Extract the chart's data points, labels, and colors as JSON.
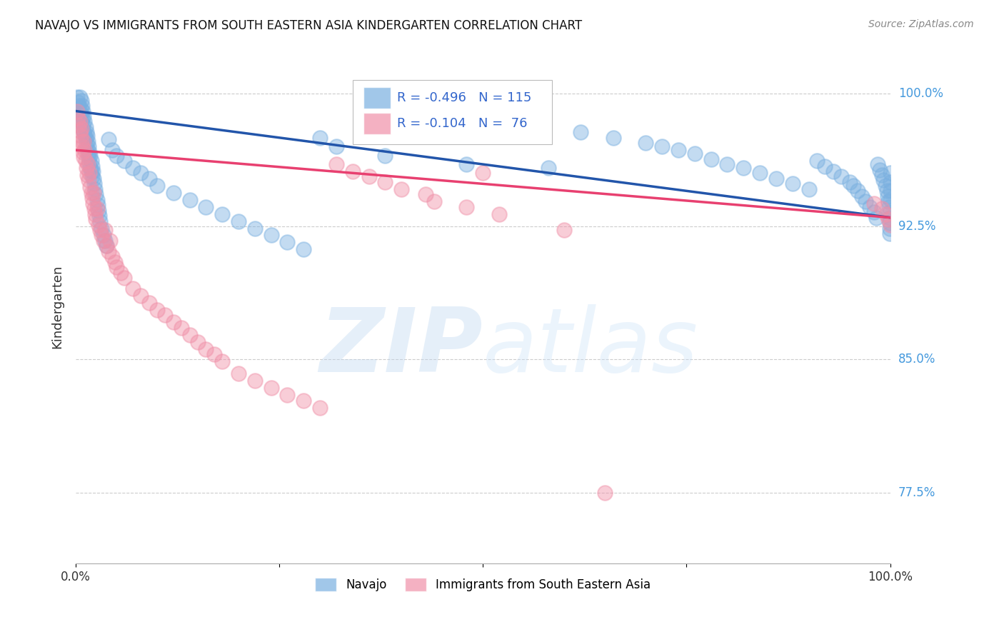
{
  "title": "NAVAJO VS IMMIGRANTS FROM SOUTH EASTERN ASIA KINDERGARTEN CORRELATION CHART",
  "source": "Source: ZipAtlas.com",
  "ylabel": "Kindergarten",
  "ymin": 0.735,
  "ymax": 1.025,
  "xmin": 0.0,
  "xmax": 1.0,
  "legend_R_navajo": "R = -0.496",
  "legend_N_navajo": "N = 115",
  "legend_R_asia": "R = -0.104",
  "legend_N_asia": "N =  76",
  "navajo_color": "#7AB0E0",
  "asia_color": "#F090A8",
  "trendline_navajo_color": "#2255AA",
  "trendline_asia_color": "#E84070",
  "background_color": "#FFFFFF",
  "grid_color": "#CCCCCC",
  "right_labels": {
    "1.0": "100.0%",
    "0.925": "92.5%",
    "0.85": "85.0%",
    "0.775": "77.5%"
  },
  "navajo_trendline_y0": 0.99,
  "navajo_trendline_y1": 0.93,
  "asia_trendline_y0": 0.968,
  "asia_trendline_y1": 0.93,
  "navajo_x": [
    0.002,
    0.003,
    0.004,
    0.005,
    0.005,
    0.006,
    0.006,
    0.007,
    0.007,
    0.008,
    0.008,
    0.009,
    0.009,
    0.01,
    0.01,
    0.011,
    0.011,
    0.012,
    0.012,
    0.013,
    0.013,
    0.014,
    0.014,
    0.015,
    0.015,
    0.016,
    0.016,
    0.017,
    0.017,
    0.018,
    0.018,
    0.019,
    0.019,
    0.02,
    0.02,
    0.021,
    0.022,
    0.023,
    0.024,
    0.025,
    0.026,
    0.027,
    0.028,
    0.029,
    0.03,
    0.032,
    0.034,
    0.036,
    0.038,
    0.04,
    0.045,
    0.05,
    0.06,
    0.07,
    0.08,
    0.09,
    0.1,
    0.12,
    0.14,
    0.16,
    0.18,
    0.2,
    0.22,
    0.24,
    0.26,
    0.28,
    0.3,
    0.32,
    0.38,
    0.48,
    0.58,
    0.62,
    0.66,
    0.7,
    0.72,
    0.74,
    0.76,
    0.78,
    0.8,
    0.82,
    0.84,
    0.86,
    0.88,
    0.9,
    0.91,
    0.92,
    0.93,
    0.94,
    0.95,
    0.955,
    0.96,
    0.965,
    0.97,
    0.975,
    0.98,
    0.983,
    0.985,
    0.987,
    0.99,
    0.992,
    0.994,
    0.996,
    0.997,
    0.998,
    0.999,
    0.9992,
    0.9994,
    0.9996,
    0.9998,
    0.9999,
    1.0,
    1.0,
    1.0,
    1.0
  ],
  "navajo_y": [
    0.998,
    0.995,
    0.993,
    0.998,
    0.99,
    0.992,
    0.988,
    0.996,
    0.984,
    0.993,
    0.986,
    0.99,
    0.982,
    0.987,
    0.979,
    0.984,
    0.977,
    0.981,
    0.975,
    0.978,
    0.972,
    0.976,
    0.969,
    0.973,
    0.966,
    0.97,
    0.964,
    0.967,
    0.961,
    0.965,
    0.958,
    0.962,
    0.956,
    0.959,
    0.953,
    0.956,
    0.952,
    0.949,
    0.946,
    0.943,
    0.94,
    0.937,
    0.934,
    0.931,
    0.928,
    0.924,
    0.92,
    0.917,
    0.914,
    0.974,
    0.968,
    0.965,
    0.962,
    0.958,
    0.955,
    0.952,
    0.948,
    0.944,
    0.94,
    0.936,
    0.932,
    0.928,
    0.924,
    0.92,
    0.916,
    0.912,
    0.975,
    0.97,
    0.965,
    0.96,
    0.958,
    0.978,
    0.975,
    0.972,
    0.97,
    0.968,
    0.966,
    0.963,
    0.96,
    0.958,
    0.955,
    0.952,
    0.949,
    0.946,
    0.962,
    0.959,
    0.956,
    0.953,
    0.95,
    0.948,
    0.945,
    0.942,
    0.939,
    0.936,
    0.933,
    0.93,
    0.96,
    0.957,
    0.954,
    0.951,
    0.948,
    0.945,
    0.942,
    0.939,
    0.936,
    0.933,
    0.93,
    0.927,
    0.924,
    0.921,
    0.955,
    0.95,
    0.945,
    0.94
  ],
  "asia_x": [
    0.002,
    0.003,
    0.004,
    0.005,
    0.005,
    0.006,
    0.007,
    0.007,
    0.008,
    0.009,
    0.01,
    0.01,
    0.011,
    0.012,
    0.013,
    0.014,
    0.015,
    0.016,
    0.017,
    0.018,
    0.019,
    0.02,
    0.021,
    0.022,
    0.023,
    0.024,
    0.025,
    0.026,
    0.028,
    0.03,
    0.032,
    0.034,
    0.036,
    0.038,
    0.04,
    0.042,
    0.045,
    0.048,
    0.05,
    0.055,
    0.06,
    0.07,
    0.08,
    0.09,
    0.1,
    0.11,
    0.12,
    0.13,
    0.14,
    0.15,
    0.16,
    0.17,
    0.18,
    0.2,
    0.22,
    0.24,
    0.26,
    0.28,
    0.3,
    0.32,
    0.34,
    0.36,
    0.38,
    0.4,
    0.43,
    0.44,
    0.48,
    0.5,
    0.52,
    0.98,
    0.99,
    0.995,
    0.998,
    1.0,
    0.6,
    0.65
  ],
  "asia_y": [
    0.99,
    0.986,
    0.982,
    0.979,
    0.984,
    0.976,
    0.98,
    0.973,
    0.97,
    0.967,
    0.973,
    0.964,
    0.968,
    0.962,
    0.958,
    0.954,
    0.96,
    0.951,
    0.955,
    0.947,
    0.944,
    0.941,
    0.938,
    0.944,
    0.935,
    0.932,
    0.929,
    0.935,
    0.926,
    0.923,
    0.92,
    0.917,
    0.923,
    0.914,
    0.911,
    0.917,
    0.908,
    0.905,
    0.902,
    0.899,
    0.896,
    0.89,
    0.886,
    0.882,
    0.878,
    0.875,
    0.871,
    0.868,
    0.864,
    0.86,
    0.856,
    0.853,
    0.849,
    0.842,
    0.838,
    0.834,
    0.83,
    0.827,
    0.823,
    0.96,
    0.956,
    0.953,
    0.95,
    0.946,
    0.943,
    0.939,
    0.936,
    0.955,
    0.932,
    0.938,
    0.935,
    0.932,
    0.929,
    0.926,
    0.923,
    0.775
  ]
}
